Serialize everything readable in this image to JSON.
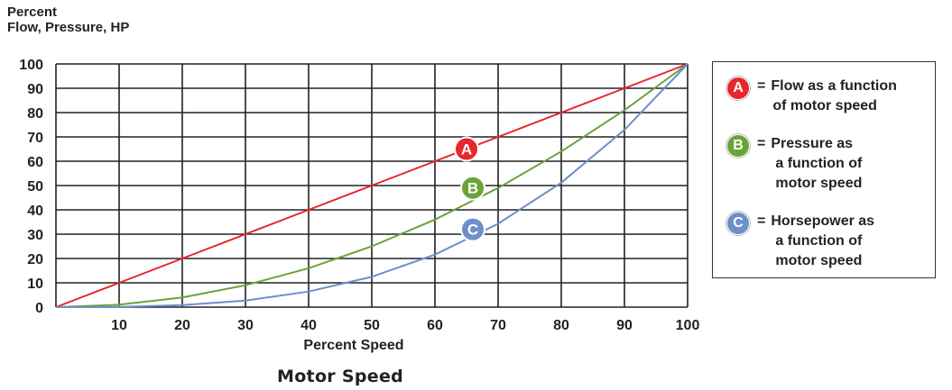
{
  "y_title_line1": "Percent",
  "y_title_line2": "Flow, Pressure, HP",
  "chart_title": "Motor Speed",
  "colors": {
    "A": "#e8262c",
    "B": "#6aa338",
    "C": "#6d8fcb",
    "grid": "#222222"
  },
  "chart_data": {
    "type": "line",
    "title": "Motor Speed",
    "xlabel": "Percent Speed",
    "ylabel": "Percent Flow, Pressure, HP",
    "xlim": [
      0,
      100
    ],
    "ylim": [
      0,
      100
    ],
    "x_ticks": [
      10,
      20,
      30,
      40,
      50,
      60,
      70,
      80,
      90,
      100
    ],
    "y_ticks": [
      0,
      10,
      20,
      30,
      40,
      50,
      60,
      70,
      80,
      90,
      100
    ],
    "grid": true,
    "legend_position": "right",
    "series": [
      {
        "name": "Flow as a function of motor speed",
        "marker": "A",
        "color": "#e8262c",
        "x": [
          0,
          10,
          20,
          30,
          40,
          50,
          60,
          70,
          80,
          90,
          100
        ],
        "y": [
          0,
          10,
          20,
          30,
          40,
          50,
          60,
          70,
          80,
          90,
          100
        ]
      },
      {
        "name": "Pressure as a function of motor speed",
        "marker": "B",
        "color": "#6aa338",
        "x": [
          0,
          10,
          20,
          30,
          40,
          50,
          60,
          70,
          80,
          90,
          100
        ],
        "y": [
          0,
          1,
          4,
          9,
          16,
          25,
          36,
          49,
          64,
          81,
          100
        ]
      },
      {
        "name": "Horsepower as a function of motor speed",
        "marker": "C",
        "color": "#6d8fcb",
        "x": [
          0,
          10,
          20,
          30,
          40,
          50,
          60,
          70,
          80,
          90,
          100
        ],
        "y": [
          0,
          0.1,
          0.8,
          2.7,
          6.4,
          12.5,
          21.6,
          34.3,
          51.2,
          72.9,
          100
        ]
      }
    ],
    "annotations": [
      {
        "label": "A",
        "x": 65,
        "y": 65
      },
      {
        "label": "B",
        "x": 66,
        "y": 49
      },
      {
        "label": "C",
        "x": 66,
        "y": 32
      }
    ]
  },
  "legend": [
    {
      "badge": "A",
      "eq": "=",
      "lines": [
        "Flow as a function",
        "of motor speed"
      ]
    },
    {
      "badge": "B",
      "eq": "=",
      "lines": [
        "Pressure as",
        "a function of",
        "motor speed"
      ]
    },
    {
      "badge": "C",
      "eq": "=",
      "lines": [
        "Horsepower as",
        "a function of",
        "motor speed"
      ]
    }
  ]
}
